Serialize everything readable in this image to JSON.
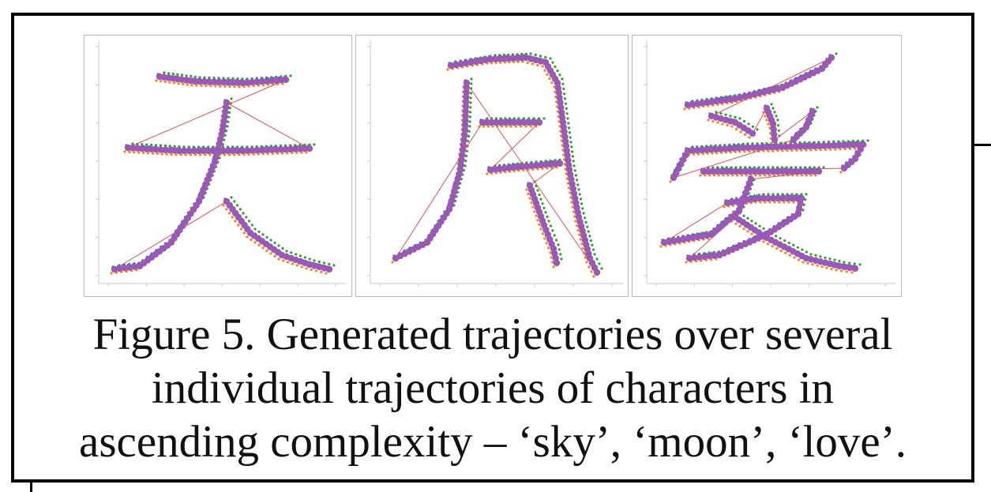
{
  "figure": {
    "caption_lines": [
      "Figure 5. Generated trajectories over several",
      "individual trajectories of characters in",
      "ascending complexity – ‘sky’, ‘moon’, ‘love’."
    ],
    "panels": [
      {
        "character": "天",
        "meaning": "sky"
      },
      {
        "character": "月",
        "meaning": "moon"
      },
      {
        "character": "爱",
        "meaning": "love"
      }
    ]
  },
  "colors": {
    "generated": "#9b59b6",
    "connector": "#e05050",
    "traj_blue": "#1f77b4",
    "traj_orange": "#ff7f0e",
    "traj_green": "#2ca02c",
    "frame": "#000000",
    "panel_border": "#b9b9b9"
  }
}
